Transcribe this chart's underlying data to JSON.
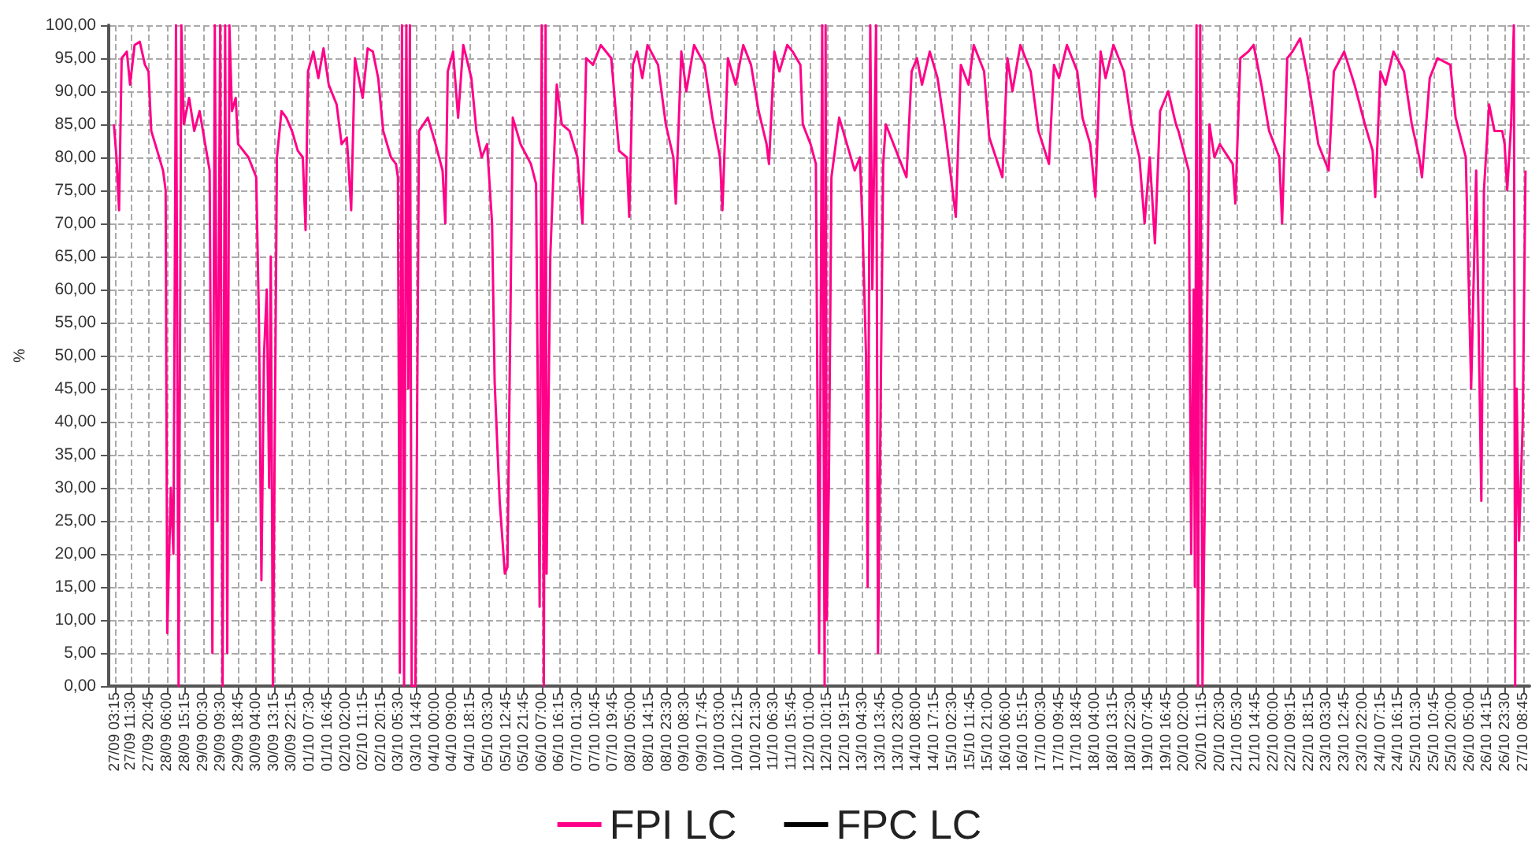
{
  "chart_data": {
    "type": "line",
    "ylabel": "%",
    "xlim": [
      "--09-27T00:00",
      "--10-27T12:00"
    ],
    "ylim": [
      0,
      100
    ],
    "yticks": [
      {
        "value": 0,
        "label": "0,00"
      },
      {
        "value": 5,
        "label": "5,00"
      },
      {
        "value": 10,
        "label": "10,00"
      },
      {
        "value": 15,
        "label": "15,00"
      },
      {
        "value": 20,
        "label": "20,00"
      },
      {
        "value": 25,
        "label": "25,00"
      },
      {
        "value": 30,
        "label": "30,00"
      },
      {
        "value": 35,
        "label": "35,00"
      },
      {
        "value": 40,
        "label": "40,00"
      },
      {
        "value": 45,
        "label": "45,00"
      },
      {
        "value": 50,
        "label": "50,00"
      },
      {
        "value": 55,
        "label": "55,00"
      },
      {
        "value": 60,
        "label": "60,00"
      },
      {
        "value": 65,
        "label": "65,00"
      },
      {
        "value": 70,
        "label": "70,00"
      },
      {
        "value": 75,
        "label": "75,00"
      },
      {
        "value": 80,
        "label": "80,00"
      },
      {
        "value": 85,
        "label": "85,00"
      },
      {
        "value": 90,
        "label": "90,00"
      },
      {
        "value": 95,
        "label": "95,00"
      },
      {
        "value": 100,
        "label": "100,00"
      }
    ],
    "xticks": [
      {
        "value": "--09-27T03:15",
        "label": "27/09 03:15"
      },
      {
        "value": "--09-27T11:30",
        "label": "27/09 11:30"
      },
      {
        "value": "--09-27T20:45",
        "label": "27/09 20:45"
      },
      {
        "value": "--09-28T06:00",
        "label": "28/09 06:00"
      },
      {
        "value": "--09-28T15:15",
        "label": "28/09 15:15"
      },
      {
        "value": "--09-29T00:30",
        "label": "29/09 00:30"
      },
      {
        "value": "--09-29T09:30",
        "label": "29/09 09:30"
      },
      {
        "value": "--09-29T18:45",
        "label": "29/09 18:45"
      },
      {
        "value": "--09-30T04:00",
        "label": "30/09 04:00"
      },
      {
        "value": "--09-30T13:15",
        "label": "30/09 13:15"
      },
      {
        "value": "--09-30T22:15",
        "label": "30/09 22:15"
      },
      {
        "value": "--10-01T07:30",
        "label": "01/10 07:30"
      },
      {
        "value": "--10-01T16:45",
        "label": "01/10 16:45"
      },
      {
        "value": "--10-02T02:00",
        "label": "02/10 02:00"
      },
      {
        "value": "--10-02T11:15",
        "label": "02/10 11:15"
      },
      {
        "value": "--10-02T20:15",
        "label": "02/10 20:15"
      },
      {
        "value": "--10-03T05:30",
        "label": "03/10 05:30"
      },
      {
        "value": "--10-03T14:45",
        "label": "03/10 14:45"
      },
      {
        "value": "--10-04T00:00",
        "label": "04/10 00:00"
      },
      {
        "value": "--10-04T09:00",
        "label": "04/10 09:00"
      },
      {
        "value": "--10-04T18:15",
        "label": "04/10 18:15"
      },
      {
        "value": "--10-05T03:30",
        "label": "05/10 03:30"
      },
      {
        "value": "--10-05T12:45",
        "label": "05/10 12:45"
      },
      {
        "value": "--10-05T21:45",
        "label": "05/10 21:45"
      },
      {
        "value": "--10-06T07:00",
        "label": "06/10 07:00"
      },
      {
        "value": "--10-06T16:15",
        "label": "06/10 16:15"
      },
      {
        "value": "--10-07T01:30",
        "label": "07/10 01:30"
      },
      {
        "value": "--10-07T10:45",
        "label": "07/10 10:45"
      },
      {
        "value": "--10-07T19:45",
        "label": "07/10 19:45"
      },
      {
        "value": "--10-08T05:00",
        "label": "08/10 05:00"
      },
      {
        "value": "--10-08T14:15",
        "label": "08/10 14:15"
      },
      {
        "value": "--10-08T23:30",
        "label": "08/10 23:30"
      },
      {
        "value": "--10-09T08:30",
        "label": "09/10 08:30"
      },
      {
        "value": "--10-09T17:45",
        "label": "09/10 17:45"
      },
      {
        "value": "--10-10T03:00",
        "label": "10/10 03:00"
      },
      {
        "value": "--10-10T12:15",
        "label": "10/10 12:15"
      },
      {
        "value": "--10-10T21:30",
        "label": "10/10 21:30"
      },
      {
        "value": "--10-11T06:30",
        "label": "11/10 06:30"
      },
      {
        "value": "--10-11T15:45",
        "label": "11/10 15:45"
      },
      {
        "value": "--10-12T01:00",
        "label": "12/10 01:00"
      },
      {
        "value": "--10-12T10:15",
        "label": "12/10 10:15"
      },
      {
        "value": "--10-12T19:15",
        "label": "12/10 19:15"
      },
      {
        "value": "--10-13T04:30",
        "label": "13/10 04:30"
      },
      {
        "value": "--10-13T13:45",
        "label": "13/10 13:45"
      },
      {
        "value": "--10-13T23:00",
        "label": "13/10 23:00"
      },
      {
        "value": "--10-14T08:00",
        "label": "14/10 08:00"
      },
      {
        "value": "--10-14T17:15",
        "label": "14/10 17:15"
      },
      {
        "value": "--10-15T02:30",
        "label": "15/10 02:30"
      },
      {
        "value": "--10-15T11:45",
        "label": "15/10 11:45"
      },
      {
        "value": "--10-15T21:00",
        "label": "15/10 21:00"
      },
      {
        "value": "--10-16T06:00",
        "label": "16/10 06:00"
      },
      {
        "value": "--10-16T15:15",
        "label": "16/10 15:15"
      },
      {
        "value": "--10-17T00:30",
        "label": "17/10 00:30"
      },
      {
        "value": "--10-17T09:45",
        "label": "17/10 09:45"
      },
      {
        "value": "--10-17T18:45",
        "label": "17/10 18:45"
      },
      {
        "value": "--10-18T04:00",
        "label": "18/10 04:00"
      },
      {
        "value": "--10-18T13:15",
        "label": "18/10 13:15"
      },
      {
        "value": "--10-18T22:30",
        "label": "18/10 22:30"
      },
      {
        "value": "--10-19T07:45",
        "label": "19/10 07:45"
      },
      {
        "value": "--10-19T16:45",
        "label": "19/10 16:45"
      },
      {
        "value": "--10-20T02:00",
        "label": "20/10 02:00"
      },
      {
        "value": "--10-20T11:15",
        "label": "20/10 11:15"
      },
      {
        "value": "--10-20T20:30",
        "label": "20/10 20:30"
      },
      {
        "value": "--10-21T05:30",
        "label": "21/10 05:30"
      },
      {
        "value": "--10-21T14:45",
        "label": "21/10 14:45"
      },
      {
        "value": "--10-22T00:00",
        "label": "22/10 00:00"
      },
      {
        "value": "--10-22T09:15",
        "label": "22/10 09:15"
      },
      {
        "value": "--10-22T18:15",
        "label": "22/10 18:15"
      },
      {
        "value": "--10-23T03:30",
        "label": "23/10 03:30"
      },
      {
        "value": "--10-23T12:45",
        "label": "23/10 12:45"
      },
      {
        "value": "--10-23T22:00",
        "label": "23/10 22:00"
      },
      {
        "value": "--10-24T07:15",
        "label": "24/10 07:15"
      },
      {
        "value": "--10-24T16:15",
        "label": "24/10 16:15"
      },
      {
        "value": "--10-25T01:30",
        "label": "25/10 01:30"
      },
      {
        "value": "--10-25T10:45",
        "label": "25/10 10:45"
      },
      {
        "value": "--10-25T20:00",
        "label": "25/10 20:00"
      },
      {
        "value": "--10-26T05:00",
        "label": "26/10 05:00"
      },
      {
        "value": "--10-26T14:15",
        "label": "26/10 14:15"
      },
      {
        "value": "--10-26T23:30",
        "label": "26/10 23:30"
      },
      {
        "value": "--10-27T08:45",
        "label": "27/10 08:45"
      }
    ],
    "grid": true,
    "legend": "bottom",
    "marker": "none",
    "series": [
      {
        "name": "FPI LC",
        "color": "#ff0088",
        "x": [
          "--09-27T02:40",
          "--09-27T04:00",
          "--09-27T05:20",
          "--09-27T06:40",
          "--09-27T09:20",
          "--09-27T11:00",
          "--09-27T13:20",
          "--09-27T16:00",
          "--09-27T18:40",
          "--09-27T20:30",
          "--09-27T21:55",
          "--09-28T01:00",
          "--09-28T04:00",
          "--09-28T05:20",
          "--09-28T06:10",
          "--09-28T08:00",
          "--09-28T09:20",
          "--09-28T10:40",
          "--09-28T12:00",
          "--09-28T13:25",
          "--09-28T14:40",
          "--09-28T17:25",
          "--09-28T20:05",
          "--09-28T22:50",
          "--09-29T04:00",
          "--09-29T05:25",
          "--09-29T06:40",
          "--09-29T08:00",
          "--09-29T09:25",
          "--09-29T10:40",
          "--09-29T12:00",
          "--09-29T13:05",
          "--09-29T14:10",
          "--09-29T15:30",
          "--09-29T17:25",
          "--09-29T18:40",
          "--09-30T00:00",
          "--09-30T04:00",
          "--09-30T05:25",
          "--09-30T06:40",
          "--09-30T08:00",
          "--09-30T09:25",
          "--09-30T10:40",
          "--09-30T11:30",
          "--09-30T12:35",
          "--09-30T14:40",
          "--09-30T17:00",
          "--09-30T19:30",
          "--09-30T22:25",
          "--10-01T01:25",
          "--10-01T04:00",
          "--10-01T05:25",
          "--10-01T06:40",
          "--10-01T09:25",
          "--10-01T12:00",
          "--10-01T14:40",
          "--10-01T17:20",
          "--10-01T21:25",
          "--10-02T00:00",
          "--10-02T02:40",
          "--10-02T04:55",
          "--10-02T06:50",
          "--10-02T10:50",
          "--10-02T13:25",
          "--10-02T16:05",
          "--10-02T18:50",
          "--10-02T21:25",
          "--10-03T01:25",
          "--10-03T04:00",
          "--10-03T05:00",
          "--10-03T06:00",
          "--10-03T07:05",
          "--10-03T08:10",
          "--10-03T09:20",
          "--10-03T10:20",
          "--10-03T11:10",
          "--10-03T12:05",
          "--10-03T14:00",
          "--10-03T15:50",
          "--10-03T20:25",
          "--10-04T00:25",
          "--10-04T04:00",
          "--10-04T05:25",
          "--10-04T06:40",
          "--10-04T09:25",
          "--10-04T12:00",
          "--10-04T14:40",
          "--10-04T18:50",
          "--10-04T21:25",
          "--10-05T00:10",
          "--10-05T02:55",
          "--10-05T05:30",
          "--10-05T06:50",
          "--10-05T09:25",
          "--10-05T12:05",
          "--10-05T13:25",
          "--10-05T16:10",
          "--10-05T20:10",
          "--10-06T01:30",
          "--10-06T04:10",
          "--10-06T06:00",
          "--10-06T07:05",
          "--10-06T08:10",
          "--10-06T09:05",
          "--10-06T09:35",
          "--10-06T11:30",
          "--10-06T14:50",
          "--10-06T17:25",
          "--10-06T21:25",
          "--10-07T01:30",
          "--10-07T04:05",
          "--10-07T06:00",
          "--10-07T09:30",
          "--10-07T13:30",
          "--10-07T18:55",
          "--10-07T22:55",
          "--10-08T02:55",
          "--10-08T04:10",
          "--10-08T06:05",
          "--10-08T08:10",
          "--10-08T10:55",
          "--10-08T13:35",
          "--10-08T19:00",
          "--10-08T23:00",
          "--10-09T02:55",
          "--10-09T04:10",
          "--10-09T07:00",
          "--10-09T09:35",
          "--10-09T13:35",
          "--10-09T19:00",
          "--10-09T23:00",
          "--10-10T02:55",
          "--10-10T04:10",
          "--10-10T07:00",
          "--10-10T11:00",
          "--10-10T14:55",
          "--10-10T18:55",
          "--10-10T22:50",
          "--10-11T02:55",
          "--10-11T04:10",
          "--10-11T06:55",
          "--10-11T09:35",
          "--10-11T13:35",
          "--10-11T16:20",
          "--10-11T20:20",
          "--10-11T21:35",
          "--10-12T01:35",
          "--10-12T04:20",
          "--10-12T06:00",
          "--10-12T07:35",
          "--10-12T08:50",
          "--10-12T09:20",
          "--10-12T09:55",
          "--10-12T11:00",
          "--10-12T12:20",
          "--10-12T16:20",
          "--10-12T20:20",
          "--10-13T00:20",
          "--10-13T03:00",
          "--10-13T04:20",
          "--10-13T06:10",
          "--10-13T07:00",
          "--10-13T08:20",
          "--10-13T09:25",
          "--10-13T11:20",
          "--10-13T12:20",
          "--10-13T15:00",
          "--10-13T16:20",
          "--10-14T00:20",
          "--10-14T03:00",
          "--10-14T05:40",
          "--10-14T08:25",
          "--10-14T11:00",
          "--10-14T15:00",
          "--10-14T19:00",
          "--10-14T23:00",
          "--10-15T04:25",
          "--10-15T07:00",
          "--10-15T11:00",
          "--10-15T13:40",
          "--10-15T19:00",
          "--10-15T21:40",
          "--10-16T04:25",
          "--10-16T07:00",
          "--10-16T09:35",
          "--10-16T13:40",
          "--10-16T19:00",
          "--10-16T23:00",
          "--10-17T04:25",
          "--10-17T07:00",
          "--10-17T09:35",
          "--10-17T13:40",
          "--10-17T19:00",
          "--10-17T21:40",
          "--10-18T01:40",
          "--10-18T04:20",
          "--10-18T07:00",
          "--10-18T09:35",
          "--10-18T13:40",
          "--10-18T19:00",
          "--10-18T23:00",
          "--10-19T03:00",
          "--10-19T05:40",
          "--10-19T08:20",
          "--10-19T11:00",
          "--10-19T13:40",
          "--10-19T17:50",
          "--10-19T21:50",
          "--10-19T23:05",
          "--10-20T04:25",
          "--10-20T05:40",
          "--10-20T07:00",
          "--10-20T07:35",
          "--10-20T08:25",
          "--10-20T09:10",
          "--10-20T10:20",
          "--10-20T11:30",
          "--10-20T15:05",
          "--10-20T17:40",
          "--10-20T20:25",
          "--10-21T03:05",
          "--10-21T04:25",
          "--10-21T07:00",
          "--10-21T11:05",
          "--10-21T13:50",
          "--10-21T17:50",
          "--10-21T21:50",
          "--10-22T03:05",
          "--10-22T04:30",
          "--10-22T07:10",
          "--10-22T09:50",
          "--10-22T13:50",
          "--10-22T17:50",
          "--10-22T23:10",
          "--10-23T01:50",
          "--10-23T04:30",
          "--10-23T07:10",
          "--10-23T12:30",
          "--10-23T17:50",
          "--10-23T23:10",
          "--10-24T03:10",
          "--10-24T04:30",
          "--10-24T07:10",
          "--10-24T09:50",
          "--10-24T13:55",
          "--10-24T19:20",
          "--10-24T23:20",
          "--10-25T03:10",
          "--10-25T04:35",
          "--10-25T08:35",
          "--10-25T12:35",
          "--10-25T19:10",
          "--10-25T21:55",
          "--10-26T03:10",
          "--10-26T05:55",
          "--10-26T08:30",
          "--10-26T11:10",
          "--10-26T12:30",
          "--10-26T15:10",
          "--10-26T17:55",
          "--10-26T21:55",
          "--10-26T23:10",
          "--10-27T00:30",
          "--10-27T02:30",
          "--10-27T03:55",
          "--10-27T04:35",
          "--10-27T05:20",
          "--10-27T06:35",
          "--10-27T08:30",
          "--10-27T09:55"
        ],
        "values": [
          85,
          80,
          72,
          95,
          96,
          91,
          97,
          97.5,
          94,
          93,
          84,
          81,
          78,
          75,
          8,
          30,
          20,
          100,
          0,
          100,
          85,
          89,
          84,
          87,
          78,
          5,
          100,
          25,
          100,
          0,
          100,
          5,
          100,
          87,
          89,
          82,
          80,
          77,
          55,
          16,
          50,
          60,
          30,
          65,
          0,
          80,
          87,
          86,
          84,
          81,
          80,
          69,
          93,
          96,
          92,
          96.5,
          91,
          88,
          82,
          83,
          72,
          95,
          89,
          96.5,
          96,
          92,
          84,
          80,
          79,
          77,
          2,
          100,
          0,
          100,
          45,
          100,
          0,
          0,
          84,
          86,
          82,
          78,
          70,
          93,
          96,
          86,
          97,
          92,
          84,
          80,
          82,
          70,
          46,
          28,
          17,
          18,
          86,
          82,
          79,
          76,
          12,
          100,
          0,
          100,
          17,
          65,
          91,
          85,
          84,
          80,
          70,
          95,
          94,
          97,
          95,
          81,
          80,
          71,
          94,
          96,
          92,
          97,
          94,
          85,
          80,
          73,
          96,
          90,
          97,
          94,
          86,
          80,
          72,
          95,
          91,
          97,
          94,
          87,
          82,
          79,
          96,
          93,
          97,
          96,
          94,
          85,
          82,
          79,
          5,
          100,
          0,
          100,
          10,
          30,
          77,
          86,
          82,
          78,
          80,
          70,
          50,
          15,
          100,
          60,
          100,
          5,
          79,
          85,
          79,
          77,
          93,
          95,
          91,
          96,
          92,
          84,
          71,
          94,
          91,
          97,
          93,
          83,
          77,
          95,
          90,
          97,
          93,
          84,
          79,
          94,
          92,
          97,
          93,
          86,
          82,
          74,
          96,
          92,
          97,
          93,
          85,
          80,
          70,
          80,
          67,
          87,
          90,
          85,
          84,
          78,
          20,
          60,
          15,
          100,
          0,
          100,
          0,
          85,
          80,
          82,
          79,
          73,
          95,
          96,
          97,
          91,
          84,
          80,
          70,
          95,
          96,
          98,
          92,
          82,
          80,
          78,
          93,
          96,
          91,
          85,
          81,
          74,
          93,
          91,
          96,
          93,
          85,
          80,
          77,
          92,
          95,
          94,
          86,
          80,
          45,
          78,
          28,
          75,
          88,
          84,
          84,
          82,
          75,
          85,
          100,
          0,
          45,
          22,
          40,
          78
        ]
      },
      {
        "name": "FPC LC",
        "color": "#000000"
      }
    ]
  }
}
